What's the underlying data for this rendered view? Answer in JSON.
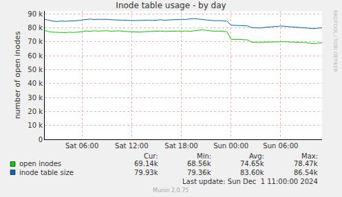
{
  "chart_data": {
    "type": "line",
    "title": "Inode table usage - by day",
    "y_label": "number of open inodes",
    "categories": [
      null,
      null,
      null,
      null,
      null,
      null,
      null,
      null,
      null,
      "Sat 06:00",
      null,
      null,
      null,
      null,
      null,
      null,
      null,
      null,
      null,
      null,
      null,
      "Sat 12:00",
      null,
      null,
      null,
      null,
      null,
      null,
      null,
      null,
      null,
      null,
      null,
      "Sat 18:00",
      null,
      null,
      null,
      null,
      null,
      null,
      null,
      null,
      null,
      null,
      null,
      "Sun 00:00",
      null,
      null,
      null,
      null,
      null,
      null,
      null,
      null,
      null,
      null,
      null,
      "Sun 06:00",
      null,
      null,
      null,
      null,
      null,
      null,
      null,
      null,
      null,
      null
    ],
    "series": [
      {
        "name": "open inodes",
        "color": "#00cc00",
        "values": [
          78000,
          77200,
          76800,
          76600,
          76700,
          76500,
          76800,
          76600,
          76900,
          77300,
          77600,
          77500,
          77800,
          77600,
          77700,
          77900,
          77500,
          77600,
          77800,
          77400,
          77200,
          77000,
          77100,
          76900,
          77200,
          77300,
          77100,
          77400,
          77600,
          77300,
          77500,
          77400,
          77600,
          77500,
          77700,
          77400,
          77800,
          78200,
          78470,
          78100,
          77700,
          77500,
          77600,
          77300,
          77200,
          71800,
          71500,
          71600,
          71400,
          71300,
          69600,
          69500,
          69400,
          69700,
          69800,
          69600,
          69900,
          70100,
          70000,
          69800,
          69700,
          69500,
          69300,
          69400,
          68900,
          68560,
          69000,
          69140
        ],
        "stats": [
          "69.14k",
          "68.56k",
          "74.65k",
          "78.47k"
        ]
      },
      {
        "name": "inode table size",
        "color": "#0066b3",
        "values": [
          86000,
          85200,
          84700,
          84500,
          84800,
          84600,
          84700,
          84900,
          85100,
          85500,
          85900,
          86200,
          85800,
          86100,
          85900,
          86000,
          85700,
          85600,
          85800,
          85500,
          85300,
          85100,
          85200,
          85000,
          85300,
          85400,
          85200,
          85500,
          85700,
          85400,
          85600,
          85500,
          85800,
          86000,
          85900,
          86300,
          86540,
          86200,
          85900,
          85600,
          85300,
          85000,
          85100,
          84900,
          84800,
          81800,
          81600,
          81700,
          81500,
          81300,
          80100,
          80000,
          79800,
          80200,
          80500,
          80700,
          80900,
          81200,
          81000,
          80800,
          80600,
          80500,
          80300,
          80100,
          79600,
          79360,
          79700,
          79930
        ],
        "stats": [
          "79.93k",
          "79.36k",
          "83.60k",
          "86.54k"
        ]
      }
    ],
    "stats_columns": [
      "Cur:",
      "Min:",
      "Avg:",
      "Max:"
    ],
    "ylim": [
      0,
      92000
    ],
    "yticks": [
      0,
      {
        "value": 10000,
        "label": "10 k"
      },
      {
        "value": 20000,
        "label": "20 k"
      },
      {
        "value": 30000,
        "label": "30 k"
      },
      {
        "value": 40000,
        "label": "40 k"
      },
      {
        "value": 50000,
        "label": "50 k"
      },
      {
        "value": 60000,
        "label": "60 k"
      },
      {
        "value": 70000,
        "label": "70 k"
      },
      {
        "value": 80000,
        "label": "80 k"
      },
      {
        "value": 90000,
        "label": "90 k"
      }
    ],
    "grid": true,
    "footer": "Last update: Sun Dec  1 11:00:00 2024",
    "credit": "Munin 2.0.75",
    "watermark": "RRDTOOL / TOBI OETIKER"
  }
}
